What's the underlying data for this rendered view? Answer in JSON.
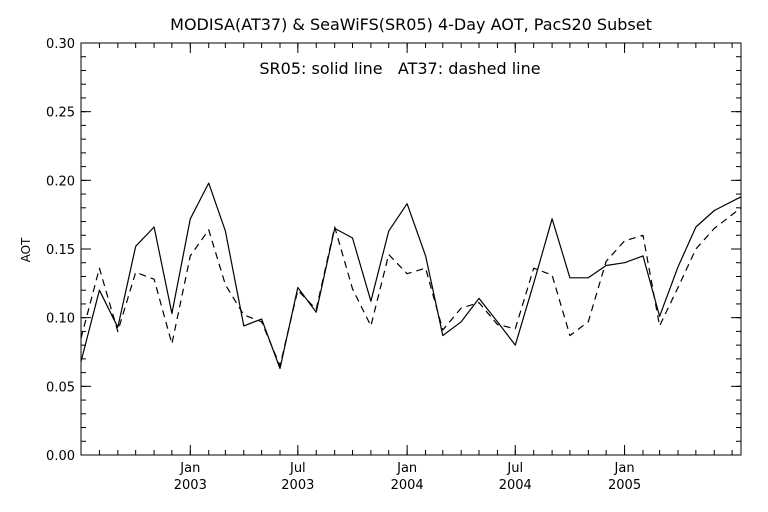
{
  "chart_data": {
    "type": "line",
    "title": "MODISA(AT37) & SeaWiFS(SR05) 4-Day AOT, PacS20 Subset",
    "annotation": "SR05: solid line   AT37: dashed line",
    "xlabel": "",
    "ylabel": "AOT",
    "ylim": [
      0,
      0.3
    ],
    "xlim": [
      "2002-07-01",
      "2005-07-16"
    ],
    "yticks": [
      "0.00",
      "0.05",
      "0.10",
      "0.15",
      "0.20",
      "0.25",
      "0.30"
    ],
    "xticks": [
      {
        "date": "2003-01-01",
        "month": "Jan",
        "year": "2003"
      },
      {
        "date": "2003-07-01",
        "month": "Jul",
        "year": "2003"
      },
      {
        "date": "2004-01-01",
        "month": "Jan",
        "year": "2004"
      },
      {
        "date": "2004-07-01",
        "month": "Jul",
        "year": "2004"
      },
      {
        "date": "2005-01-01",
        "month": "Jan",
        "year": "2005"
      }
    ],
    "grid": false,
    "series": [
      {
        "name": "SR05",
        "style": "solid",
        "color": "#000000",
        "x": [
          "2002-07-01",
          "2002-08-01",
          "2002-09-01",
          "2002-10-01",
          "2002-11-01",
          "2002-12-01",
          "2003-01-01",
          "2003-02-01",
          "2003-03-01",
          "2003-04-01",
          "2003-05-01",
          "2003-06-01",
          "2003-07-01",
          "2003-08-01",
          "2003-09-01",
          "2003-10-01",
          "2003-11-01",
          "2003-12-01",
          "2004-01-01",
          "2004-02-01",
          "2004-03-01",
          "2004-04-01",
          "2004-05-01",
          "2004-06-01",
          "2004-07-01",
          "2004-08-01",
          "2004-09-01",
          "2004-10-01",
          "2004-11-01",
          "2004-12-01",
          "2005-01-01",
          "2005-02-01",
          "2005-03-01",
          "2005-04-01",
          "2005-05-01",
          "2005-06-01",
          "2005-07-16"
        ],
        "values": [
          0.068,
          0.12,
          0.093,
          0.152,
          0.166,
          0.103,
          0.172,
          0.198,
          0.163,
          0.094,
          0.099,
          0.063,
          0.122,
          0.104,
          0.165,
          0.158,
          0.112,
          0.163,
          0.183,
          0.145,
          0.087,
          0.097,
          0.114,
          0.097,
          0.08,
          0.125,
          0.172,
          0.129,
          0.129,
          0.138,
          0.14,
          0.145,
          0.101,
          0.137,
          0.166,
          0.178,
          0.188
        ]
      },
      {
        "name": "AT37",
        "style": "dashed",
        "color": "#000000",
        "x": [
          "2002-07-01",
          "2002-08-01",
          "2002-09-01",
          "2002-10-01",
          "2002-11-01",
          "2002-12-01",
          "2003-01-01",
          "2003-02-01",
          "2003-03-01",
          "2003-04-01",
          "2003-05-01",
          "2003-06-01",
          "2003-07-01",
          "2003-08-01",
          "2003-09-01",
          "2003-10-01",
          "2003-11-01",
          "2003-12-01",
          "2004-01-01",
          "2004-02-01",
          "2004-03-01",
          "2004-04-01",
          "2004-05-01",
          "2004-06-01",
          "2004-07-01",
          "2004-08-01",
          "2004-09-01",
          "2004-10-01",
          "2004-11-01",
          "2004-12-01",
          "2005-01-01",
          "2005-02-01",
          "2005-03-01",
          "2005-04-01",
          "2005-05-01",
          "2005-06-01",
          "2005-07-16"
        ],
        "values": [
          0.085,
          0.136,
          0.09,
          0.133,
          0.128,
          0.081,
          0.145,
          0.164,
          0.124,
          0.102,
          0.097,
          0.065,
          0.12,
          0.106,
          0.166,
          0.121,
          0.094,
          0.146,
          0.132,
          0.136,
          0.091,
          0.107,
          0.111,
          0.095,
          0.092,
          0.136,
          0.131,
          0.087,
          0.097,
          0.141,
          0.156,
          0.16,
          0.094,
          0.122,
          0.15,
          0.165,
          0.18
        ]
      }
    ]
  }
}
